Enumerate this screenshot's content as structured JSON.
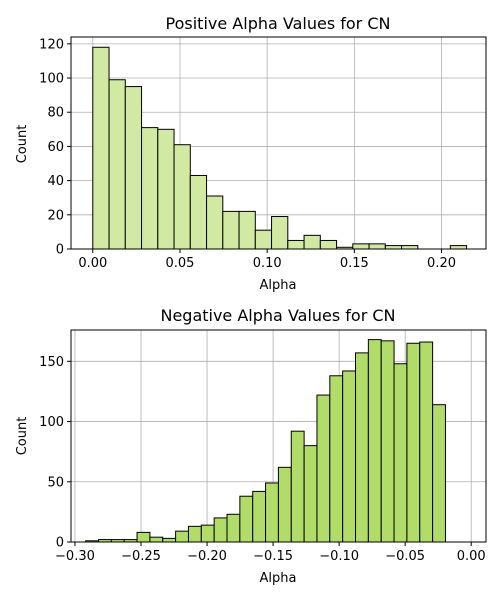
{
  "chart_data": [
    {
      "type": "histogram",
      "title": "Positive Alpha Values for CN",
      "xlabel": "Alpha",
      "ylabel": "Count",
      "xlim": [
        -0.0125,
        0.2255
      ],
      "ylim": [
        0,
        124
      ],
      "xticks": [
        0.0,
        0.05,
        0.1,
        0.15,
        0.2
      ],
      "xtick_labels": [
        "0.00",
        "0.05",
        "0.10",
        "0.15",
        "0.20"
      ],
      "yticks": [
        0,
        20,
        40,
        60,
        80,
        100,
        120
      ],
      "grid": true,
      "bar_color": "#d2e9a4",
      "edge_color": "#000000",
      "bin_start": 0.0,
      "bin_width": 0.00932,
      "values": [
        118,
        99,
        95,
        71,
        70,
        61,
        43,
        31,
        22,
        22,
        11,
        19,
        5,
        8,
        5,
        1,
        3,
        3,
        2,
        2,
        0,
        0,
        2
      ]
    },
    {
      "type": "histogram",
      "title": "Negative Alpha Values for CN",
      "xlabel": "Alpha",
      "ylabel": "Count",
      "xlim": [
        -0.303,
        0.0112
      ],
      "ylim": [
        0,
        176
      ],
      "xticks": [
        -0.3,
        -0.25,
        -0.2,
        -0.15,
        -0.1,
        -0.05,
        0.0
      ],
      "xtick_labels": [
        "−0.30",
        "−0.25",
        "−0.20",
        "−0.15",
        "−0.10",
        "−0.05",
        "0.00"
      ],
      "yticks": [
        0,
        50,
        100,
        150
      ],
      "grid": true,
      "bar_color": "#b2dc6a",
      "edge_color": "#000000",
      "bin_start": -0.2919,
      "bin_width": 0.009729,
      "values": [
        1,
        2,
        2,
        2,
        8,
        4,
        3,
        9,
        13,
        14,
        20,
        23,
        38,
        42,
        49,
        62,
        92,
        80,
        122,
        138,
        142,
        157,
        168,
        167,
        148,
        165,
        166,
        114
      ]
    }
  ]
}
